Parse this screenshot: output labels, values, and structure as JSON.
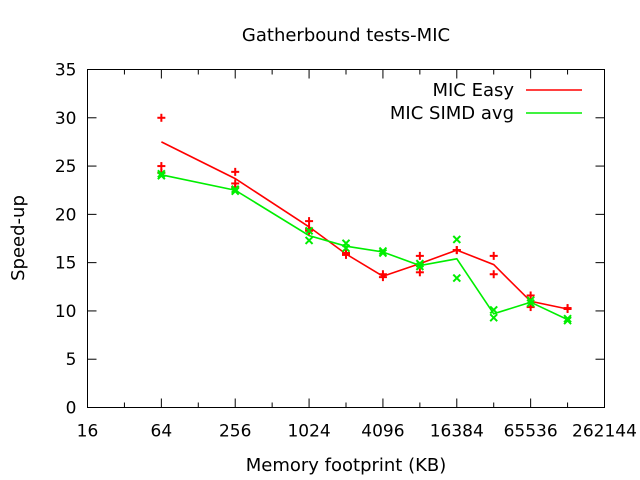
{
  "chart_data": {
    "type": "line",
    "title": "Gatherbound tests-MIC",
    "xlabel": "Memory footprint (KB)",
    "ylabel": "Speed-up",
    "x_scale": "log2",
    "xlim": [
      16,
      262144
    ],
    "ylim": [
      0,
      35
    ],
    "x_ticks": [
      16,
      64,
      256,
      1024,
      4096,
      16384,
      65536,
      262144
    ],
    "x_tick_labels": [
      "16",
      "64",
      "256",
      "1024",
      "4096",
      "16384",
      "65536",
      "262144"
    ],
    "y_ticks": [
      0,
      5,
      10,
      15,
      20,
      25,
      30,
      35
    ],
    "y_tick_labels": [
      "0",
      "5",
      "10",
      "15",
      "20",
      "25",
      "30",
      "35"
    ],
    "grid": false,
    "legend_position": "top-right",
    "series": [
      {
        "name": "MIC Easy",
        "color": "#ff0000",
        "marker": "plus",
        "line": {
          "x": [
            64,
            256,
            1024,
            2048,
            4096,
            8192,
            16384,
            32768,
            65536,
            131072
          ],
          "y": [
            27.5,
            23.7,
            18.7,
            15.9,
            13.6,
            14.9,
            16.3,
            14.8,
            11.0,
            10.2
          ]
        },
        "points": {
          "x": [
            64,
            64,
            64,
            256,
            256,
            256,
            1024,
            1024,
            1024,
            2048,
            2048,
            4096,
            4096,
            8192,
            8192,
            16384,
            16384,
            32768,
            32768,
            65536,
            65536,
            131072,
            131072
          ],
          "y": [
            30.0,
            25.0,
            24.3,
            24.4,
            23.2,
            22.8,
            19.3,
            18.5,
            18.3,
            16.0,
            15.8,
            13.8,
            13.5,
            15.7,
            14.0,
            16.3,
            16.3,
            15.7,
            13.8,
            11.6,
            10.4,
            10.3,
            10.2
          ]
        }
      },
      {
        "name": "MIC SIMD avg",
        "color": "#00ee00",
        "marker": "cross",
        "line": {
          "x": [
            64,
            256,
            1024,
            2048,
            4096,
            8192,
            16384,
            32768,
            65536,
            131072
          ],
          "y": [
            24.1,
            22.5,
            17.8,
            16.7,
            16.1,
            14.7,
            15.4,
            9.7,
            10.9,
            9.1
          ]
        },
        "points": {
          "x": [
            64,
            64,
            256,
            256,
            1024,
            1024,
            2048,
            2048,
            4096,
            4096,
            8192,
            8192,
            16384,
            16384,
            32768,
            32768,
            65536,
            65536,
            131072,
            131072
          ],
          "y": [
            24.2,
            24.0,
            22.6,
            22.4,
            18.3,
            17.3,
            17.0,
            16.5,
            16.2,
            16.0,
            14.9,
            14.6,
            17.4,
            13.4,
            10.1,
            9.3,
            11.1,
            10.8,
            9.2,
            9.0
          ]
        }
      }
    ]
  }
}
